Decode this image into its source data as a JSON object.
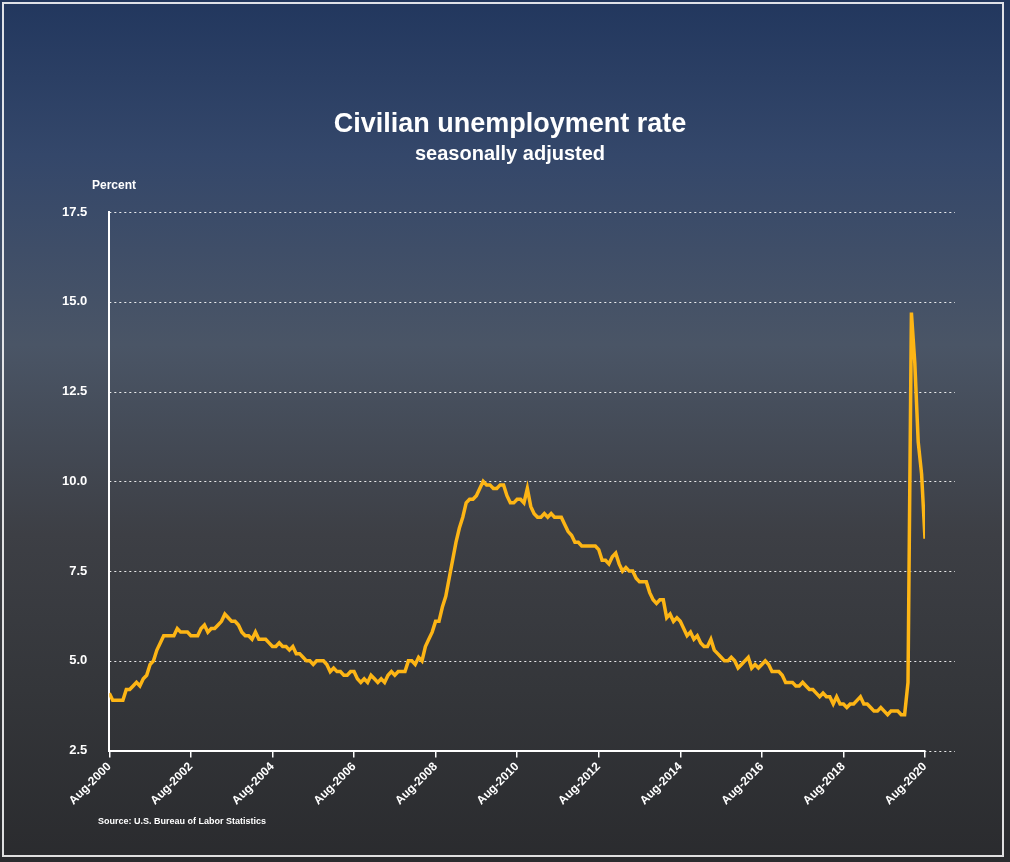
{
  "chart_data": {
    "type": "line",
    "title": "Civilian unemployment rate",
    "subtitle": "seasonally adjusted",
    "y_label": "Percent",
    "source": "Source: U.S. Bureau of Labor Statistics",
    "color": "#fdb515",
    "grid": true,
    "ylim": [
      2.5,
      17.5
    ],
    "yticks": [
      2.5,
      {
        "value": 5,
        "label": "5.0"
      },
      7.5,
      {
        "value": 10,
        "label": "10.0"
      },
      12.5,
      {
        "value": 15,
        "label": "15.0"
      },
      17.5
    ],
    "categories": [
      "Aug-2000",
      null,
      null,
      null,
      null,
      null,
      null,
      null,
      null,
      null,
      null,
      null,
      null,
      null,
      null,
      null,
      null,
      null,
      null,
      null,
      null,
      null,
      null,
      null,
      "Aug-2002",
      null,
      null,
      null,
      null,
      null,
      null,
      null,
      null,
      null,
      null,
      null,
      null,
      null,
      null,
      null,
      null,
      null,
      null,
      null,
      null,
      null,
      null,
      null,
      "Aug-2004",
      null,
      null,
      null,
      null,
      null,
      null,
      null,
      null,
      null,
      null,
      null,
      null,
      null,
      null,
      null,
      null,
      null,
      null,
      null,
      null,
      null,
      null,
      null,
      "Aug-2006",
      null,
      null,
      null,
      null,
      null,
      null,
      null,
      null,
      null,
      null,
      null,
      null,
      null,
      null,
      null,
      null,
      null,
      null,
      null,
      null,
      null,
      null,
      null,
      "Aug-2008",
      null,
      null,
      null,
      null,
      null,
      null,
      null,
      null,
      null,
      null,
      null,
      null,
      null,
      null,
      null,
      null,
      null,
      null,
      null,
      null,
      null,
      null,
      null,
      "Aug-2010",
      null,
      null,
      null,
      null,
      null,
      null,
      null,
      null,
      null,
      null,
      null,
      null,
      null,
      null,
      null,
      null,
      null,
      null,
      null,
      null,
      null,
      null,
      null,
      "Aug-2012",
      null,
      null,
      null,
      null,
      null,
      null,
      null,
      null,
      null,
      null,
      null,
      null,
      null,
      null,
      null,
      null,
      null,
      null,
      null,
      null,
      null,
      null,
      null,
      "Aug-2014",
      null,
      null,
      null,
      null,
      null,
      null,
      null,
      null,
      null,
      null,
      null,
      null,
      null,
      null,
      null,
      null,
      null,
      null,
      null,
      null,
      null,
      null,
      null,
      "Aug-2016",
      null,
      null,
      null,
      null,
      null,
      null,
      null,
      null,
      null,
      null,
      null,
      null,
      null,
      null,
      null,
      null,
      null,
      null,
      null,
      null,
      null,
      null,
      null,
      "Aug-2018",
      null,
      null,
      null,
      null,
      null,
      null,
      null,
      null,
      null,
      null,
      null,
      null,
      null,
      null,
      null,
      null,
      null,
      null,
      null,
      null,
      null,
      null,
      null,
      "Aug-2020"
    ],
    "values": [
      4.1,
      3.9,
      3.9,
      3.9,
      3.9,
      4.2,
      4.2,
      4.3,
      4.4,
      4.3,
      4.5,
      4.6,
      4.9,
      5.0,
      5.3,
      5.5,
      5.7,
      5.7,
      5.7,
      5.7,
      5.9,
      5.8,
      5.8,
      5.8,
      5.7,
      5.7,
      5.7,
      5.9,
      6.0,
      5.8,
      5.9,
      5.9,
      6.0,
      6.1,
      6.3,
      6.2,
      6.1,
      6.1,
      6.0,
      5.8,
      5.7,
      5.7,
      5.6,
      5.8,
      5.6,
      5.6,
      5.6,
      5.5,
      5.4,
      5.4,
      5.5,
      5.4,
      5.4,
      5.3,
      5.4,
      5.2,
      5.2,
      5.1,
      5.0,
      5.0,
      4.9,
      5.0,
      5.0,
      5.0,
      4.9,
      4.7,
      4.8,
      4.7,
      4.7,
      4.6,
      4.6,
      4.7,
      4.7,
      4.5,
      4.4,
      4.5,
      4.4,
      4.6,
      4.5,
      4.4,
      4.5,
      4.4,
      4.6,
      4.7,
      4.6,
      4.7,
      4.7,
      4.7,
      5.0,
      5.0,
      4.9,
      5.1,
      5.0,
      5.4,
      5.6,
      5.8,
      6.1,
      6.1,
      6.5,
      6.8,
      7.3,
      7.8,
      8.3,
      8.7,
      9.0,
      9.4,
      9.5,
      9.5,
      9.6,
      9.8,
      10.0,
      9.9,
      9.9,
      9.8,
      9.8,
      9.9,
      9.9,
      9.6,
      9.4,
      9.4,
      9.5,
      9.5,
      9.4,
      9.8,
      9.3,
      9.1,
      9.0,
      9.0,
      9.1,
      9.0,
      9.1,
      9.0,
      9.0,
      9.0,
      8.8,
      8.6,
      8.5,
      8.3,
      8.3,
      8.2,
      8.2,
      8.2,
      8.2,
      8.2,
      8.1,
      7.8,
      7.8,
      7.7,
      7.9,
      8.0,
      7.7,
      7.5,
      7.6,
      7.5,
      7.5,
      7.3,
      7.2,
      7.2,
      7.2,
      6.9,
      6.7,
      6.6,
      6.7,
      6.7,
      6.2,
      6.3,
      6.1,
      6.2,
      6.1,
      5.9,
      5.7,
      5.8,
      5.6,
      5.7,
      5.5,
      5.4,
      5.4,
      5.6,
      5.3,
      5.2,
      5.1,
      5.0,
      5.0,
      5.1,
      5.0,
      4.8,
      4.9,
      5.0,
      5.1,
      4.8,
      4.9,
      4.8,
      4.9,
      5.0,
      4.9,
      4.7,
      4.7,
      4.7,
      4.6,
      4.4,
      4.4,
      4.4,
      4.3,
      4.3,
      4.4,
      4.3,
      4.2,
      4.2,
      4.1,
      4.0,
      4.1,
      4.0,
      4.0,
      3.8,
      4.0,
      3.8,
      3.8,
      3.7,
      3.8,
      3.8,
      3.9,
      4.0,
      3.8,
      3.8,
      3.7,
      3.6,
      3.6,
      3.7,
      3.6,
      3.5,
      3.6,
      3.6,
      3.6,
      3.5,
      3.5,
      4.4,
      14.7,
      13.3,
      11.1,
      10.2,
      8.4
    ]
  }
}
